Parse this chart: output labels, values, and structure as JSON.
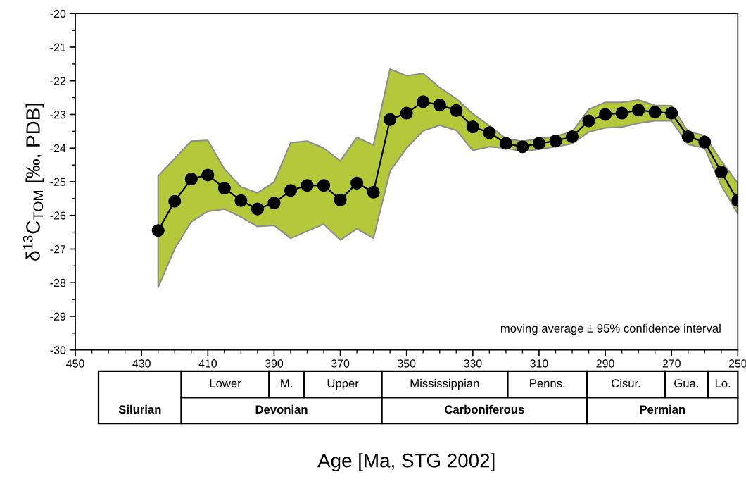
{
  "chart_data": [
    {
      "type": "line",
      "xlabel": "Age [Ma, STG 2002]",
      "ylabel": "δ$^{13}$C$_{TOM}$ [‰, PDB]",
      "x": [
        425,
        420,
        415,
        410,
        405,
        400,
        395,
        390,
        385,
        380,
        375,
        370,
        365,
        360,
        355,
        350,
        345,
        340,
        335,
        330,
        325,
        320,
        315,
        310,
        305,
        300,
        295,
        290,
        285,
        280,
        275,
        270,
        265,
        260,
        255,
        250
      ],
      "series": [
        {
          "color": "#000000",
          "upper": [
            -24.83,
            -24.31,
            -23.79,
            -23.77,
            -24.62,
            -25.15,
            -25.33,
            -25.01,
            -23.84,
            -23.79,
            -24.0,
            -24.38,
            -23.68,
            -23.91,
            -21.65,
            -21.85,
            -21.78,
            -22.2,
            -22.53,
            -22.98,
            -23.33,
            -23.72,
            -23.8,
            -23.72,
            -23.65,
            -23.51,
            -22.85,
            -22.64,
            -22.64,
            -22.57,
            -22.73,
            -22.74,
            -23.51,
            -23.63,
            -24.38,
            -25.04
          ],
          "lower": [
            -28.14,
            -26.99,
            -26.19,
            -25.88,
            -25.81,
            -26.05,
            -26.33,
            -26.3,
            -26.68,
            -26.47,
            -26.26,
            -26.73,
            -26.4,
            -26.68,
            -24.69,
            -24.0,
            -23.49,
            -23.32,
            -23.47,
            -24.07,
            -23.96,
            -24.0,
            -24.1,
            -24.03,
            -23.96,
            -23.87,
            -23.52,
            -23.4,
            -23.37,
            -23.26,
            -23.19,
            -23.19,
            -23.89,
            -24.0,
            -25.11,
            -25.95
          ],
          "values": [
            -26.45,
            -25.58,
            -24.92,
            -24.8,
            -25.19,
            -25.56,
            -25.81,
            -25.63,
            -25.26,
            -25.11,
            -25.11,
            -25.54,
            -25.04,
            -25.31,
            -23.15,
            -22.96,
            -22.62,
            -22.72,
            -22.88,
            -23.37,
            -23.54,
            -23.86,
            -23.96,
            -23.86,
            -23.79,
            -23.66,
            -23.19,
            -23.0,
            -22.96,
            -22.87,
            -22.93,
            -22.96,
            -23.66,
            -23.82,
            -24.71,
            -25.56
          ]
        }
      ],
      "marker": "circle",
      "line_style": "solid",
      "xlim": [
        450,
        250
      ],
      "xticks": [
        450,
        {
          "value": 445,
          "label": null
        },
        {
          "value": 440,
          "label": null
        },
        {
          "value": 435,
          "label": null
        },
        430,
        {
          "value": 425,
          "label": null
        },
        {
          "value": 420,
          "label": null
        },
        {
          "value": 415,
          "label": null
        },
        410,
        {
          "value": 405,
          "label": null
        },
        {
          "value": 400,
          "label": null
        },
        {
          "value": 395,
          "label": null
        },
        390,
        {
          "value": 385,
          "label": null
        },
        {
          "value": 380,
          "label": null
        },
        {
          "value": 375,
          "label": null
        },
        370,
        {
          "value": 365,
          "label": null
        },
        {
          "value": 360,
          "label": null
        },
        {
          "value": 355,
          "label": null
        },
        350,
        {
          "value": 345,
          "label": null
        },
        {
          "value": 340,
          "label": null
        },
        {
          "value": 335,
          "label": null
        },
        330,
        {
          "value": 325,
          "label": null
        },
        {
          "value": 320,
          "label": null
        },
        {
          "value": 315,
          "label": null
        },
        310,
        {
          "value": 305,
          "label": null
        },
        {
          "value": 300,
          "label": null
        },
        {
          "value": 295,
          "label": null
        },
        290,
        {
          "value": 285,
          "label": null
        },
        {
          "value": 280,
          "label": null
        },
        {
          "value": 275,
          "label": null
        },
        270,
        {
          "value": 265,
          "label": null
        },
        {
          "value": 260,
          "label": null
        },
        {
          "value": 255,
          "label": null
        },
        250
      ],
      "ylim": [
        -30,
        -20
      ],
      "yticks": [
        -30,
        {
          "value": -29.5,
          "label": null
        },
        -29,
        {
          "value": -28.5,
          "label": null
        },
        -28,
        {
          "value": -27.5,
          "label": null
        },
        -27,
        {
          "value": -26.5,
          "label": null
        },
        -26,
        {
          "value": -25.5,
          "label": null
        },
        -25,
        {
          "value": -24.5,
          "label": null
        },
        -24,
        {
          "value": -23.5,
          "label": null
        },
        -23,
        {
          "value": -22.5,
          "label": null
        },
        -22,
        {
          "value": -21.5,
          "label": null
        },
        -21,
        {
          "value": -20.5,
          "label": null
        },
        -20
      ],
      "annotations": [
        "moving average ± 95% confidence interval"
      ]
    },
    {
      "type": "other",
      "annotations": [
        "Lower",
        "M.",
        "Upper",
        "Mississippian",
        "Penns.",
        "Cisur.",
        "Gua.",
        "Lo.",
        "Silurian",
        "Devonian",
        "Carboniferous",
        "Permian"
      ]
    }
  ]
}
